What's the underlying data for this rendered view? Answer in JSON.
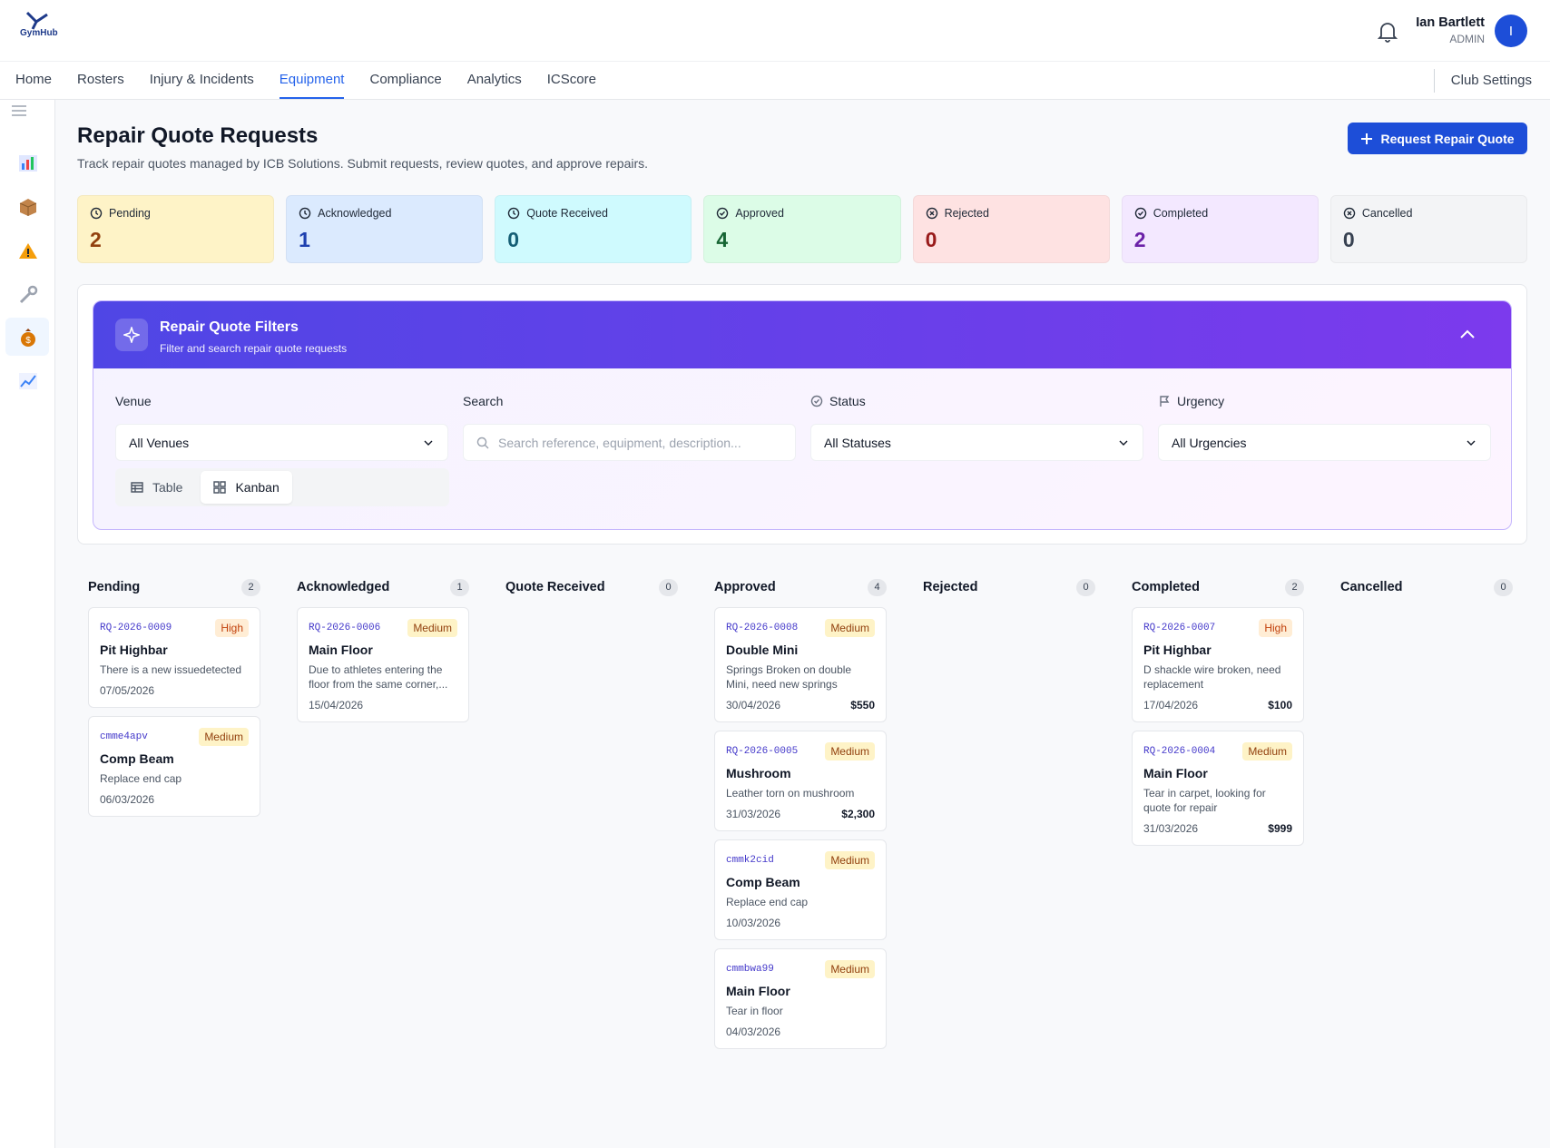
{
  "header": {
    "logo": "GymHub",
    "user_name": "Ian Bartlett",
    "user_role": "ADMIN",
    "avatar": "I"
  },
  "nav": {
    "items": [
      "Home",
      "Rosters",
      "Injury & Incidents",
      "Equipment",
      "Compliance",
      "Analytics",
      "ICScore"
    ],
    "active": 3,
    "settings": "Club Settings"
  },
  "page": {
    "title": "Repair Quote Requests",
    "subtitle": "Track repair quotes managed by ICB Solutions. Submit requests, review quotes, and approve repairs.",
    "action": "Request Repair Quote"
  },
  "stats": [
    {
      "label": "Pending",
      "value": 2
    },
    {
      "label": "Acknowledged",
      "value": 1
    },
    {
      "label": "Quote Received",
      "value": 0
    },
    {
      "label": "Approved",
      "value": 4
    },
    {
      "label": "Rejected",
      "value": 0
    },
    {
      "label": "Completed",
      "value": 2
    },
    {
      "label": "Cancelled",
      "value": 0
    }
  ],
  "filters": {
    "title": "Repair Quote Filters",
    "subtitle": "Filter and search repair quote requests",
    "fields": [
      {
        "label": "Venue",
        "value": "All Venues"
      },
      {
        "label": "Search",
        "placeholder": "Search reference, equipment, description..."
      },
      {
        "label": "Status",
        "value": "All Statuses"
      },
      {
        "label": "Urgency",
        "value": "All Urgencies"
      }
    ],
    "views": [
      "Table",
      "Kanban"
    ],
    "active_view": 1
  },
  "urgency_styles": {
    "High": {
      "bg": "#ffedd5",
      "fg": "#c2410c"
    },
    "Medium": {
      "bg": "#fef3c7",
      "fg": "#92400e"
    }
  },
  "kanban": {
    "columns": [
      {
        "name": "Pending",
        "count": 2,
        "cards": [
          {
            "ref": "RQ-2026-0009",
            "urgency": "High",
            "title": "Pit Highbar",
            "description": "There is a new issuedetected",
            "date": "07/05/2026"
          },
          {
            "ref": "cmme4apv",
            "urgency": "Medium",
            "title": "Comp Beam",
            "description": "Replace end cap",
            "date": "06/03/2026"
          }
        ]
      },
      {
        "name": "Acknowledged",
        "count": 1,
        "cards": [
          {
            "ref": "RQ-2026-0006",
            "urgency": "Medium",
            "title": "Main Floor",
            "description": "Due to athletes entering the floor from the same corner,...",
            "date": "15/04/2026"
          }
        ]
      },
      {
        "name": "Quote Received",
        "count": 0,
        "cards": []
      },
      {
        "name": "Approved",
        "count": 4,
        "cards": [
          {
            "ref": "RQ-2026-0008",
            "urgency": "Medium",
            "title": "Double Mini",
            "description": "Springs Broken on double Mini, need new springs",
            "date": "30/04/2026",
            "cost": "$550"
          },
          {
            "ref": "RQ-2026-0005",
            "urgency": "Medium",
            "title": "Mushroom",
            "description": "Leather torn on mushroom",
            "date": "31/03/2026",
            "cost": "$2,300"
          },
          {
            "ref": "cmmk2cid",
            "urgency": "Medium",
            "title": "Comp Beam",
            "description": "Replace end cap",
            "date": "10/03/2026"
          },
          {
            "ref": "cmmbwa99",
            "urgency": "Medium",
            "title": "Main Floor",
            "description": "Tear in floor",
            "date": "04/03/2026"
          }
        ]
      },
      {
        "name": "Rejected",
        "count": 0,
        "cards": []
      },
      {
        "name": "Completed",
        "count": 2,
        "cards": [
          {
            "ref": "RQ-2026-0007",
            "urgency": "High",
            "title": "Pit Highbar",
            "description": "D shackle wire broken, need replacement",
            "date": "17/04/2026",
            "cost": "$100"
          },
          {
            "ref": "RQ-2026-0004",
            "urgency": "Medium",
            "title": "Main Floor",
            "description": "Tear in carpet, looking for quote for repair",
            "date": "31/03/2026",
            "cost": "$999"
          }
        ]
      },
      {
        "name": "Cancelled",
        "count": 0,
        "cards": []
      }
    ]
  }
}
